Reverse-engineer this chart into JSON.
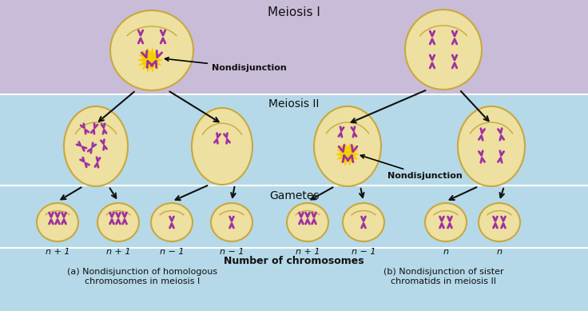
{
  "bg_top_color": "#c9bcd8",
  "bg_mid_color": "#b5d9e8",
  "cell_fill": "#ede0a0",
  "cell_edge": "#c8a840",
  "chr_color": "#a030a0",
  "burst_color": "#f5d000",
  "arrow_color": "#111111",
  "text_color": "#111111",
  "title": "Meiosis I",
  "meiosis2_label": "Meiosis II",
  "gametes_label": "Gametes",
  "nondisjunction_label": "Nondisjunction",
  "number_label": "Number of chromosomes",
  "caption_a": "(a) Nondisjunction of homologous\nchromosomes in meiosis I",
  "caption_b": "(b) Nondisjunction of sister\nchromatids in meiosis II",
  "gamete_labels_a": [
    "n + 1",
    "n + 1",
    "n − 1",
    "n − 1"
  ],
  "gamete_labels_b": [
    "n + 1",
    "n − 1",
    "n",
    "n"
  ],
  "fig_width": 7.36,
  "fig_height": 3.89
}
